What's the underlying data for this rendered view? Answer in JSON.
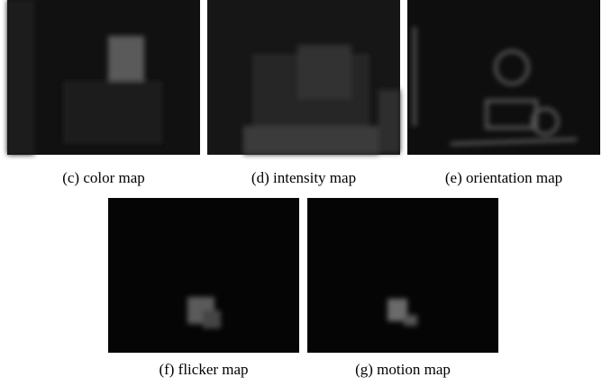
{
  "figures": [
    {
      "caption": "(c) color map"
    },
    {
      "caption": "(d) intensity map"
    },
    {
      "caption": "(e) orientation map"
    },
    {
      "caption": "(f) flicker map"
    },
    {
      "caption": "(g) motion map"
    }
  ]
}
